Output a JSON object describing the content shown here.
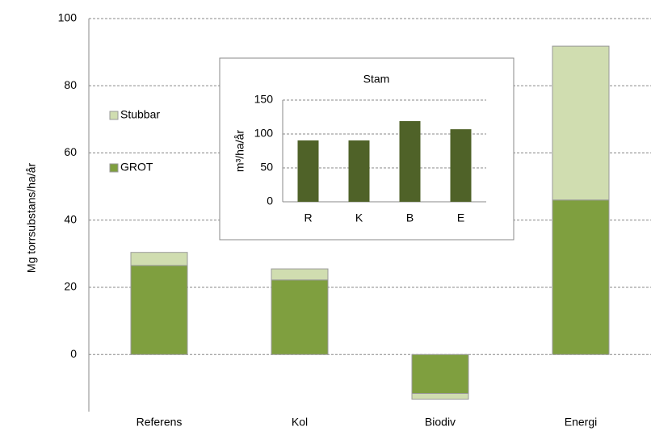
{
  "chart_data": [
    {
      "type": "stacked_bar",
      "y_label": "Mg torrsubstans/ha/år",
      "categories": [
        "Referens",
        "Kol",
        "Biodiv",
        "Energi"
      ],
      "series": [
        {
          "name": "GROT",
          "color": "#7f9f3f",
          "values": [
            26.5,
            22.2,
            -11.6,
            46
          ]
        },
        {
          "name": "Stubbar",
          "color": "#d0ddb0",
          "values": [
            3.9,
            3.3,
            -1.7,
            45.8
          ]
        }
      ],
      "ylim": [
        -17,
        100
      ],
      "yticks": [
        0,
        20,
        40,
        60,
        80,
        100
      ],
      "grid": true,
      "legend": "left"
    },
    {
      "type": "bar",
      "title": "Stam",
      "y_label": "m³/ha/år",
      "categories": [
        "R",
        "K",
        "B",
        "E"
      ],
      "values": [
        90.5,
        90.5,
        119,
        107
      ],
      "color": "#4f6228",
      "ylim": [
        0,
        150
      ],
      "yticks": [
        0,
        50,
        100,
        150
      ],
      "grid": true
    }
  ]
}
